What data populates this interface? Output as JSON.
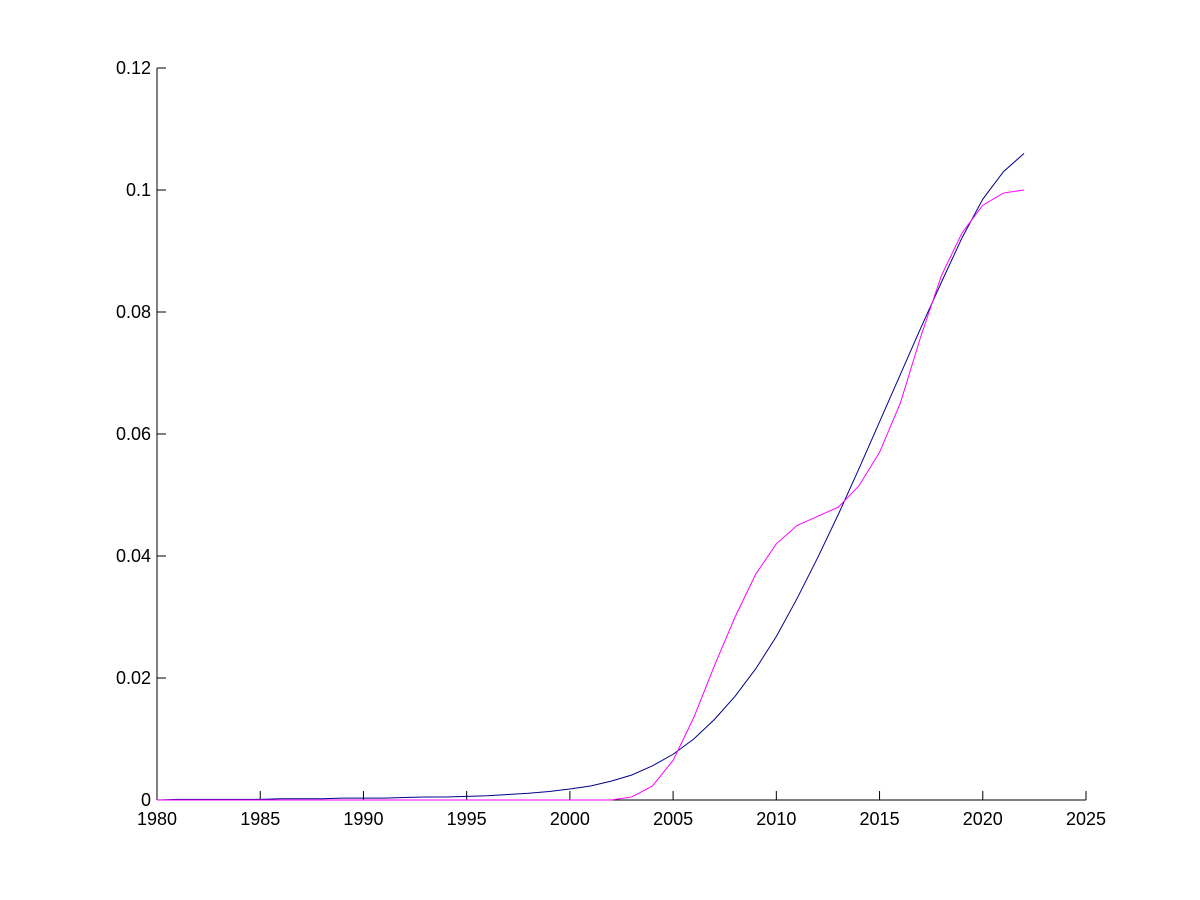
{
  "chart_data": {
    "type": "line",
    "x": [
      1980,
      1981,
      1982,
      1983,
      1984,
      1985,
      1986,
      1987,
      1988,
      1989,
      1990,
      1991,
      1992,
      1993,
      1994,
      1995,
      1996,
      1997,
      1998,
      1999,
      2000,
      2001,
      2002,
      2003,
      2004,
      2005,
      2006,
      2007,
      2008,
      2009,
      2010,
      2011,
      2012,
      2013,
      2014,
      2015,
      2016,
      2017,
      2018,
      2019,
      2020,
      2021,
      2022
    ],
    "series": [
      {
        "color": "#00008b",
        "values": [
          0,
          0.0001,
          0.0001,
          0.0001,
          0.0001,
          0.0001,
          0.0002,
          0.0002,
          0.0002,
          0.0003,
          0.0003,
          0.0003,
          0.0004,
          0.0005,
          0.0005,
          0.0006,
          0.0007,
          0.0009,
          0.0011,
          0.0014,
          0.0018,
          0.0023,
          0.0031,
          0.0041,
          0.0056,
          0.0075,
          0.01,
          0.0132,
          0.017,
          0.0215,
          0.0268,
          0.033,
          0.0397,
          0.0468,
          0.0543,
          0.062,
          0.0697,
          0.0774,
          0.0849,
          0.0922,
          0.0985,
          0.103,
          0.106
        ]
      },
      {
        "color": "#ff00ff",
        "values": [
          0,
          0,
          0,
          0,
          0,
          0,
          0,
          0,
          0,
          0,
          0,
          0,
          0,
          0,
          0,
          0,
          0,
          0,
          0,
          0,
          0,
          0,
          0,
          0.0005,
          0.0023,
          0.0065,
          0.0135,
          0.022,
          0.03,
          0.037,
          0.042,
          0.045,
          0.0465,
          0.048,
          0.0515,
          0.057,
          0.065,
          0.076,
          0.086,
          0.093,
          0.0975,
          0.0995,
          0.1
        ]
      }
    ],
    "xlim": [
      1980,
      2025
    ],
    "xticks": [
      1980,
      1985,
      1990,
      1995,
      2000,
      2005,
      2010,
      2015,
      2020,
      2025
    ],
    "ylim": [
      0,
      0.12
    ],
    "yticks": [
      0,
      0.02,
      0.04,
      0.06,
      0.08,
      0.1,
      0.12
    ]
  }
}
